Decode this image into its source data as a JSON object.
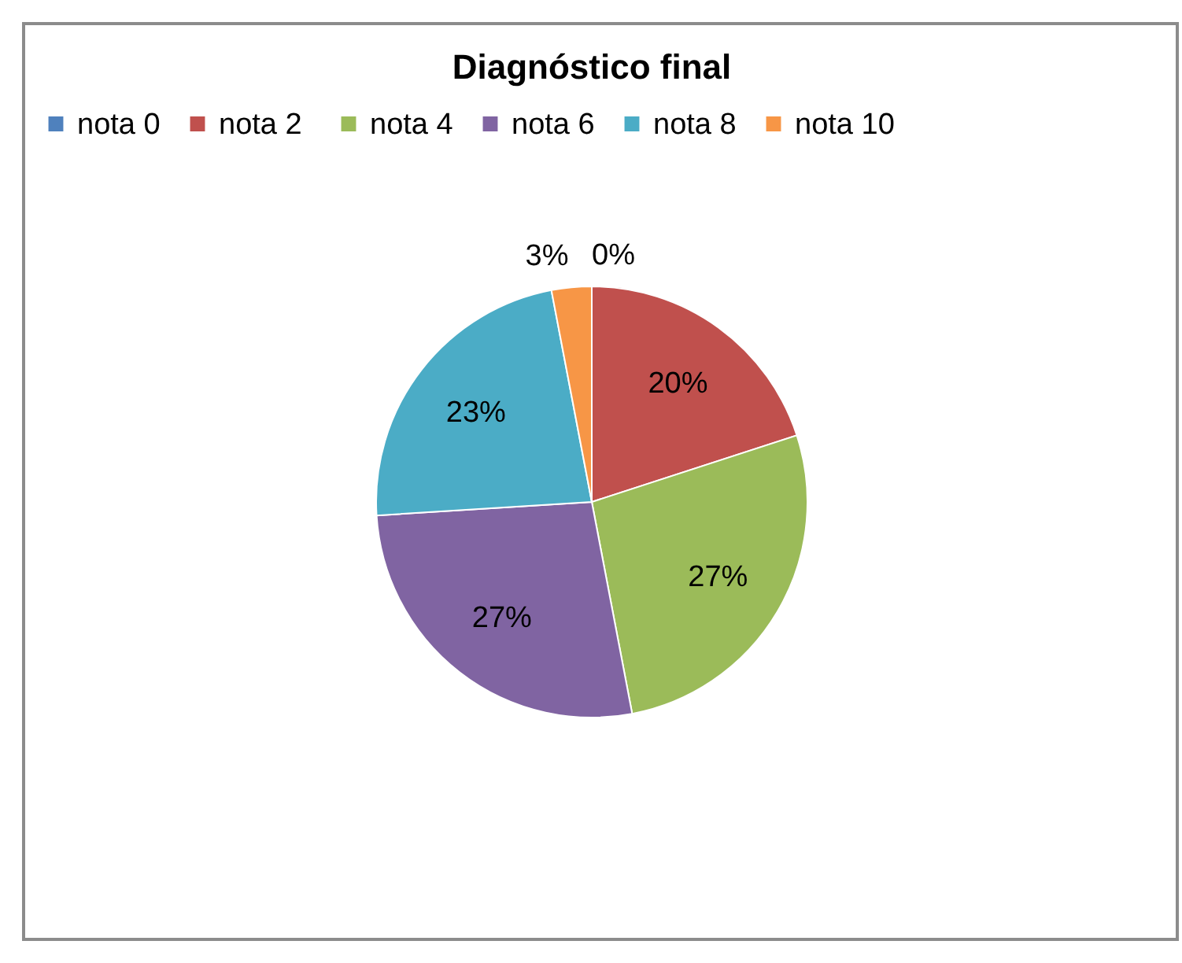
{
  "chart_data": {
    "type": "pie",
    "title": "Diagnóstico final",
    "categories": [
      "nota 0",
      "nota  2",
      "nota 4",
      "nota 6",
      "nota 8",
      "nota 10"
    ],
    "values": [
      0,
      20,
      27,
      27,
      23,
      3
    ],
    "colors": [
      "#4f81bd",
      "#c0504d",
      "#9bbb59",
      "#8064a2",
      "#4bacc6",
      "#f79646"
    ],
    "value_labels": [
      "0%",
      "20%",
      "27%",
      "27%",
      "23%",
      "3%"
    ],
    "legend": "top"
  }
}
